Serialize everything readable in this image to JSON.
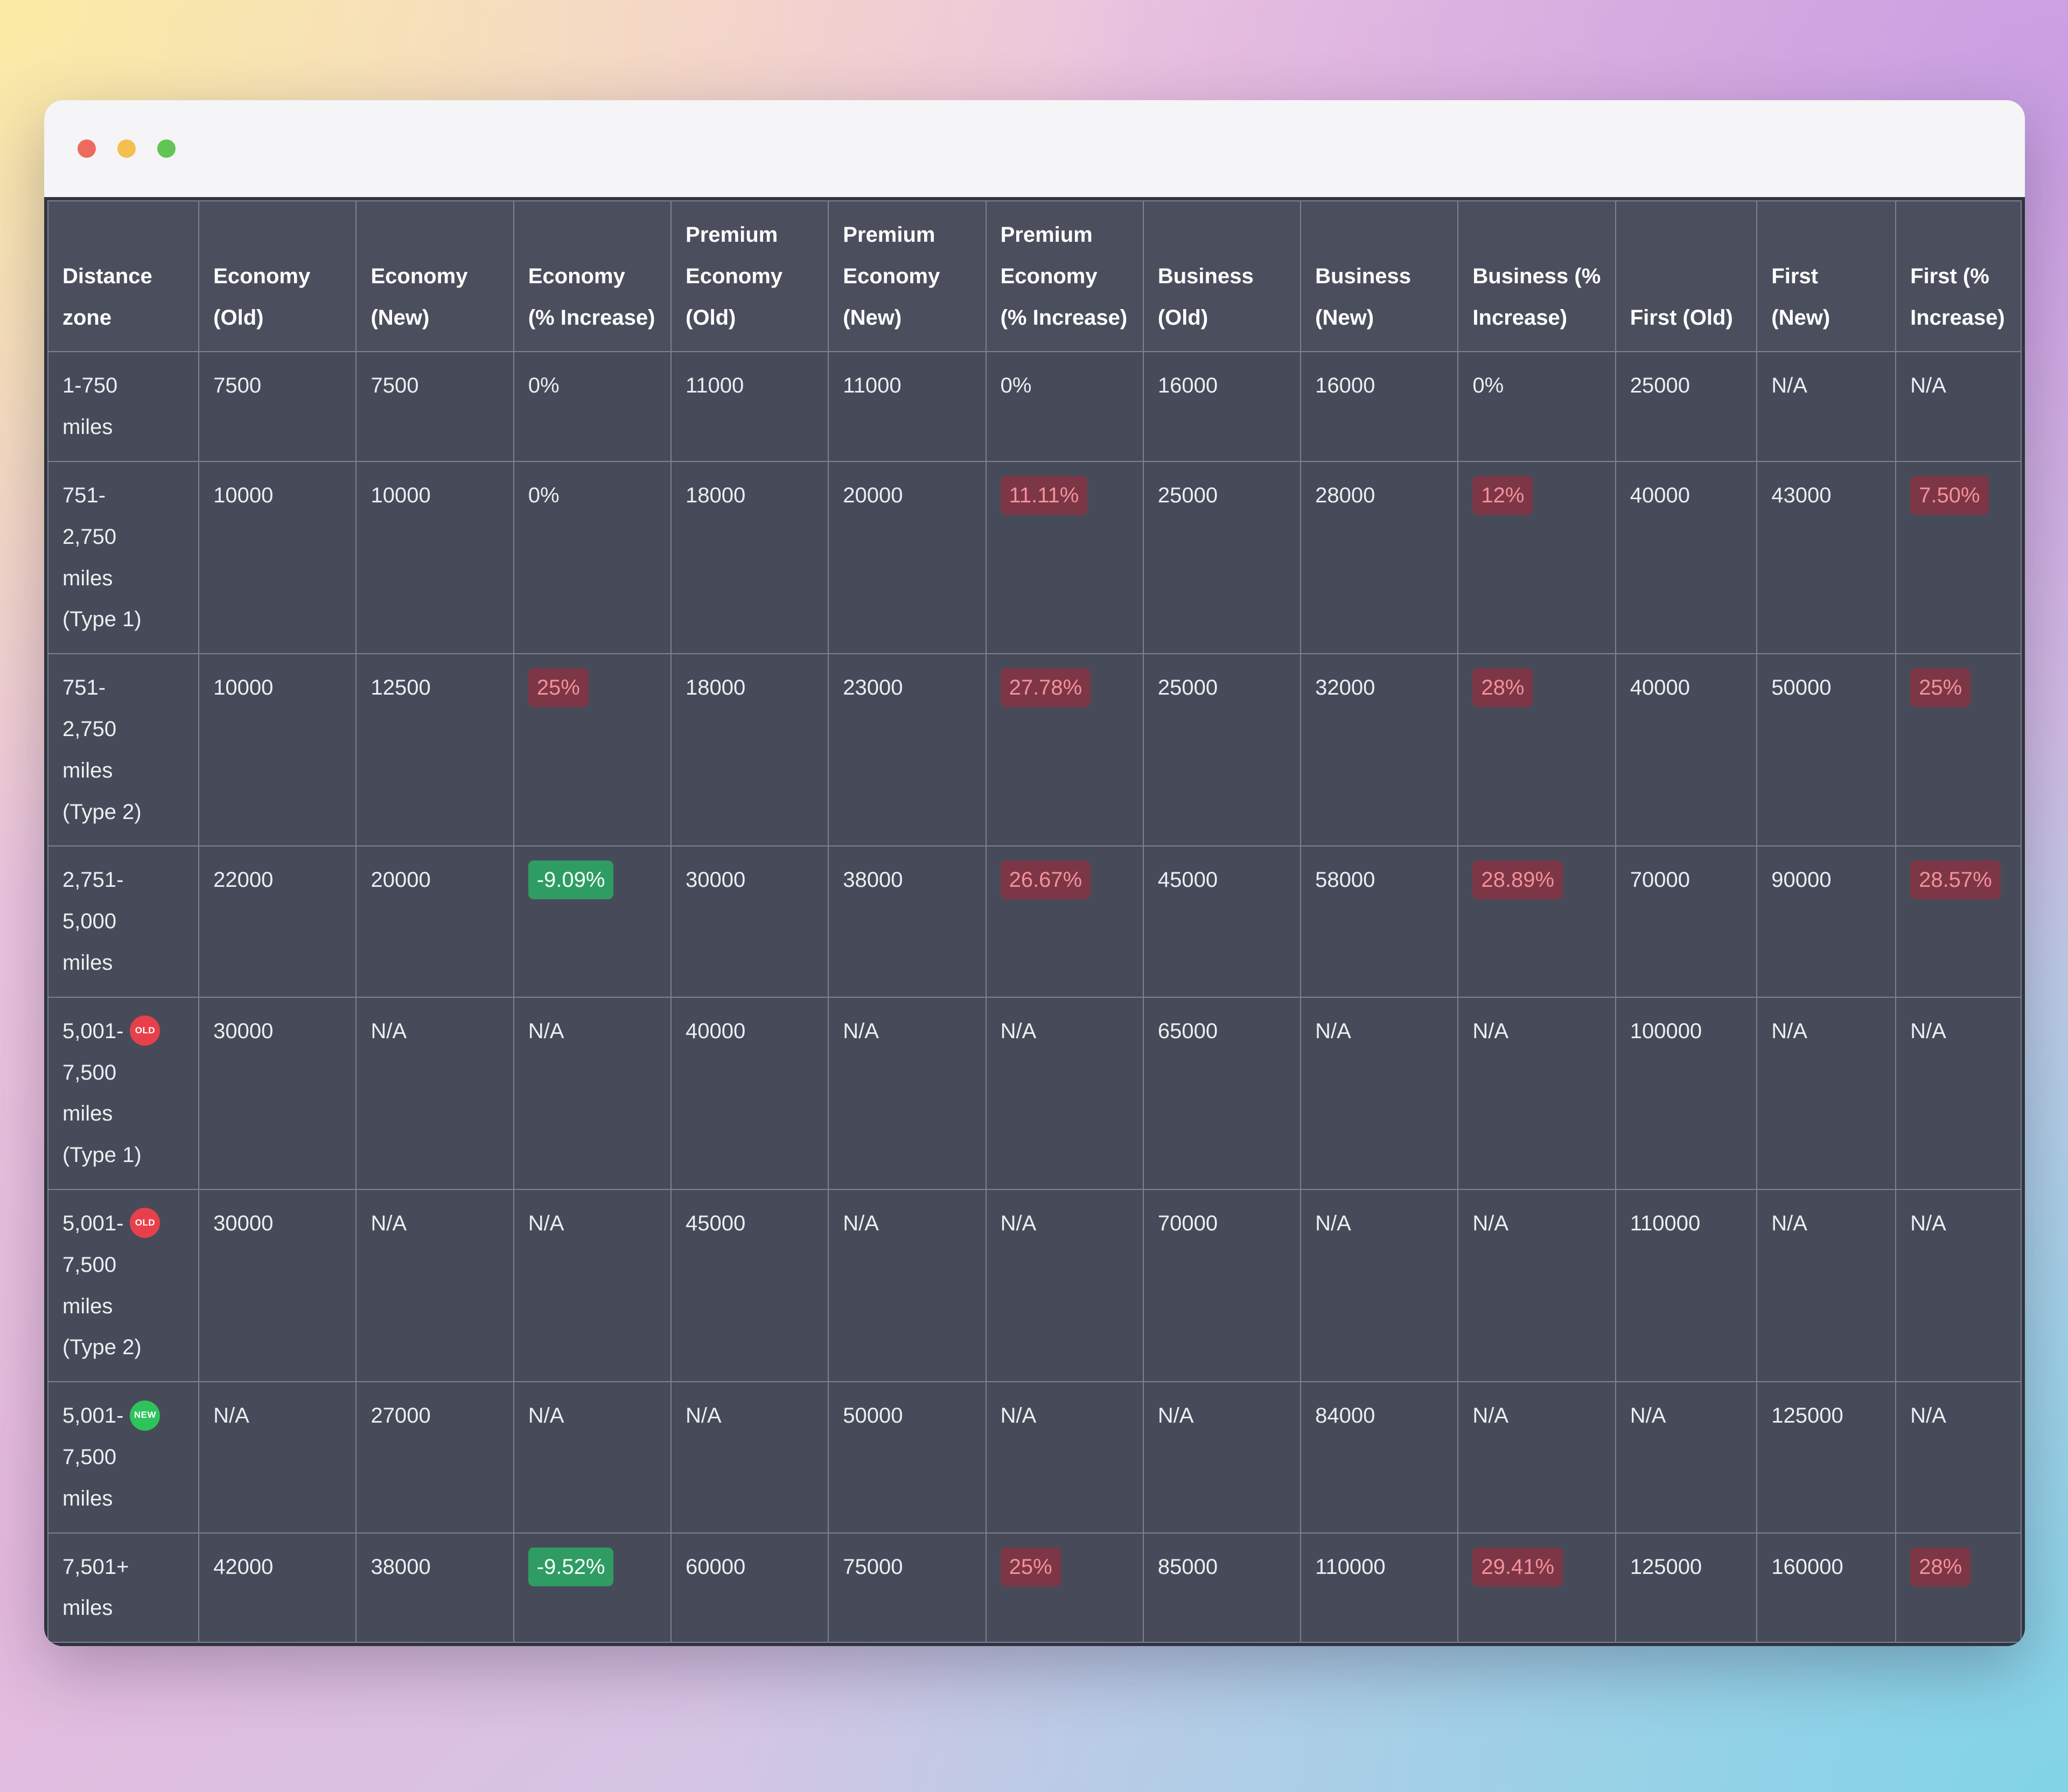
{
  "window": {
    "controls": [
      {
        "name": "close"
      },
      {
        "name": "minimize"
      },
      {
        "name": "zoom"
      }
    ]
  },
  "colors": {
    "window_bg": "#f5f4f6",
    "table_bg": "#474b59",
    "table_header_bg": "#4b4f5d",
    "grid_line": "#7b8191",
    "text": "#eceef2",
    "red_chip_bg": "#7d3645",
    "red_chip_text": "#f2919b",
    "green_chip_bg": "#2f9c63",
    "green_chip_text": "#f4fff8",
    "badge_old_bg": "#e8404b",
    "badge_new_bg": "#2ec45b",
    "tl_close": "#ee6a5f",
    "tl_min": "#f5bf4f",
    "tl_zoom": "#61c554"
  },
  "table": {
    "columns": [
      "Distance zone",
      "Economy (Old)",
      "Economy (New)",
      "Economy (% Increase)",
      "Premium Economy (Old)",
      "Premium Economy (New)",
      "Premium Economy (% Increase)",
      "Business (Old)",
      "Business (New)",
      "Business (% Increase)",
      "First (Old)",
      "First (New)",
      "First (% Increase)"
    ],
    "rows": [
      {
        "zone_lines": [
          "1-750",
          "miles"
        ],
        "badge": null,
        "cells": [
          {
            "text": "7500",
            "highlight": null
          },
          {
            "text": "7500",
            "highlight": null
          },
          {
            "text": "0%",
            "highlight": null
          },
          {
            "text": "11000",
            "highlight": null
          },
          {
            "text": "11000",
            "highlight": null
          },
          {
            "text": "0%",
            "highlight": null
          },
          {
            "text": "16000",
            "highlight": null
          },
          {
            "text": "16000",
            "highlight": null
          },
          {
            "text": "0%",
            "highlight": null
          },
          {
            "text": "25000",
            "highlight": null
          },
          {
            "text": "N/A",
            "highlight": null
          },
          {
            "text": "N/A",
            "highlight": null
          }
        ]
      },
      {
        "zone_lines": [
          "751-",
          "2,750",
          "miles",
          "(Type 1)"
        ],
        "badge": null,
        "cells": [
          {
            "text": "10000",
            "highlight": null
          },
          {
            "text": "10000",
            "highlight": null
          },
          {
            "text": "0%",
            "highlight": null
          },
          {
            "text": "18000",
            "highlight": null
          },
          {
            "text": "20000",
            "highlight": null
          },
          {
            "text": "11.11%",
            "highlight": "red"
          },
          {
            "text": "25000",
            "highlight": null
          },
          {
            "text": "28000",
            "highlight": null
          },
          {
            "text": "12%",
            "highlight": "red"
          },
          {
            "text": "40000",
            "highlight": null
          },
          {
            "text": "43000",
            "highlight": null
          },
          {
            "text": "7.50%",
            "highlight": "red"
          }
        ]
      },
      {
        "zone_lines": [
          "751-",
          "2,750",
          "miles",
          "(Type 2)"
        ],
        "badge": null,
        "cells": [
          {
            "text": "10000",
            "highlight": null
          },
          {
            "text": "12500",
            "highlight": null
          },
          {
            "text": "25%",
            "highlight": "red"
          },
          {
            "text": "18000",
            "highlight": null
          },
          {
            "text": "23000",
            "highlight": null
          },
          {
            "text": "27.78%",
            "highlight": "red"
          },
          {
            "text": "25000",
            "highlight": null
          },
          {
            "text": "32000",
            "highlight": null
          },
          {
            "text": "28%",
            "highlight": "red"
          },
          {
            "text": "40000",
            "highlight": null
          },
          {
            "text": "50000",
            "highlight": null
          },
          {
            "text": "25%",
            "highlight": "red"
          }
        ]
      },
      {
        "zone_lines": [
          "2,751-",
          "5,000",
          "miles"
        ],
        "badge": null,
        "cells": [
          {
            "text": "22000",
            "highlight": null
          },
          {
            "text": "20000",
            "highlight": null
          },
          {
            "text": "-9.09%",
            "highlight": "green"
          },
          {
            "text": "30000",
            "highlight": null
          },
          {
            "text": "38000",
            "highlight": null
          },
          {
            "text": "26.67%",
            "highlight": "red"
          },
          {
            "text": "45000",
            "highlight": null
          },
          {
            "text": "58000",
            "highlight": null
          },
          {
            "text": "28.89%",
            "highlight": "red"
          },
          {
            "text": "70000",
            "highlight": null
          },
          {
            "text": "90000",
            "highlight": null
          },
          {
            "text": "28.57%",
            "highlight": "red"
          }
        ]
      },
      {
        "zone_lines": [
          "5,001-",
          "7,500",
          "miles",
          "(Type 1)"
        ],
        "badge": {
          "text": "OLD",
          "line": 0
        },
        "cells": [
          {
            "text": "30000",
            "highlight": null
          },
          {
            "text": "N/A",
            "highlight": null
          },
          {
            "text": "N/A",
            "highlight": null
          },
          {
            "text": "40000",
            "highlight": null
          },
          {
            "text": "N/A",
            "highlight": null
          },
          {
            "text": "N/A",
            "highlight": null
          },
          {
            "text": "65000",
            "highlight": null
          },
          {
            "text": "N/A",
            "highlight": null
          },
          {
            "text": "N/A",
            "highlight": null
          },
          {
            "text": "100000",
            "highlight": null
          },
          {
            "text": "N/A",
            "highlight": null
          },
          {
            "text": "N/A",
            "highlight": null
          }
        ]
      },
      {
        "zone_lines": [
          "5,001-",
          "7,500",
          "miles",
          "(Type 2)"
        ],
        "badge": {
          "text": "OLD",
          "line": 0
        },
        "cells": [
          {
            "text": "30000",
            "highlight": null
          },
          {
            "text": "N/A",
            "highlight": null
          },
          {
            "text": "N/A",
            "highlight": null
          },
          {
            "text": "45000",
            "highlight": null
          },
          {
            "text": "N/A",
            "highlight": null
          },
          {
            "text": "N/A",
            "highlight": null
          },
          {
            "text": "70000",
            "highlight": null
          },
          {
            "text": "N/A",
            "highlight": null
          },
          {
            "text": "N/A",
            "highlight": null
          },
          {
            "text": "110000",
            "highlight": null
          },
          {
            "text": "N/A",
            "highlight": null
          },
          {
            "text": "N/A",
            "highlight": null
          }
        ]
      },
      {
        "zone_lines": [
          "5,001-",
          "7,500",
          "miles"
        ],
        "badge": {
          "text": "NEW",
          "line": 0
        },
        "cells": [
          {
            "text": "N/A",
            "highlight": null
          },
          {
            "text": "27000",
            "highlight": null
          },
          {
            "text": "N/A",
            "highlight": null
          },
          {
            "text": "N/A",
            "highlight": null
          },
          {
            "text": "50000",
            "highlight": null
          },
          {
            "text": "N/A",
            "highlight": null
          },
          {
            "text": "N/A",
            "highlight": null
          },
          {
            "text": "84000",
            "highlight": null
          },
          {
            "text": "N/A",
            "highlight": null
          },
          {
            "text": "N/A",
            "highlight": null
          },
          {
            "text": "125000",
            "highlight": null
          },
          {
            "text": "N/A",
            "highlight": null
          }
        ]
      },
      {
        "zone_lines": [
          "7,501+",
          "miles"
        ],
        "badge": null,
        "cells": [
          {
            "text": "42000",
            "highlight": null
          },
          {
            "text": "38000",
            "highlight": null
          },
          {
            "text": "-9.52%",
            "highlight": "green"
          },
          {
            "text": "60000",
            "highlight": null
          },
          {
            "text": "75000",
            "highlight": null
          },
          {
            "text": "25%",
            "highlight": "red"
          },
          {
            "text": "85000",
            "highlight": null
          },
          {
            "text": "110000",
            "highlight": null
          },
          {
            "text": "29.41%",
            "highlight": "red"
          },
          {
            "text": "125000",
            "highlight": null
          },
          {
            "text": "160000",
            "highlight": null
          },
          {
            "text": "28%",
            "highlight": "red"
          }
        ]
      }
    ]
  }
}
